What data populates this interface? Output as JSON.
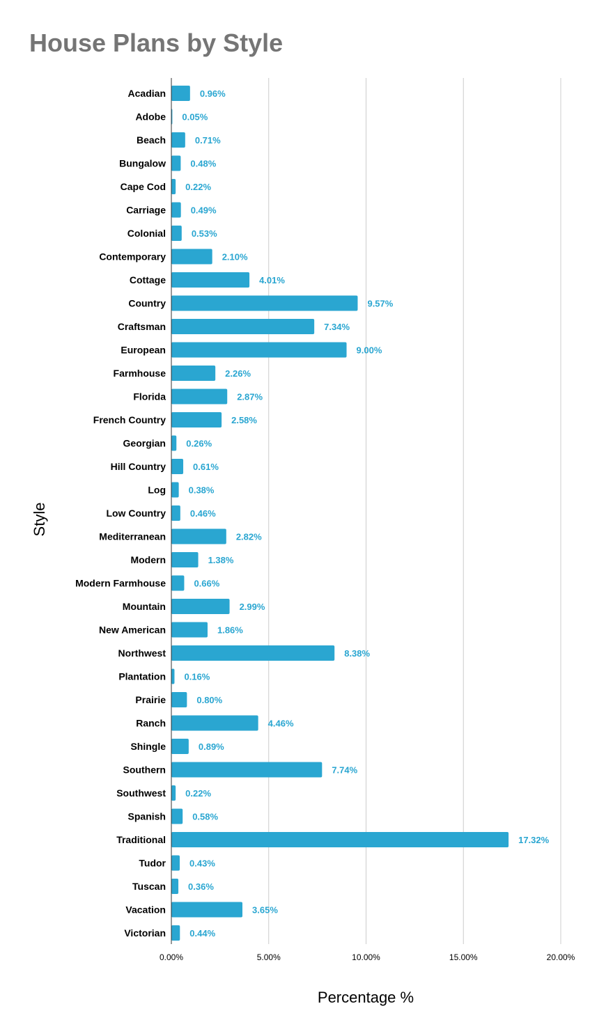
{
  "chart_data": {
    "type": "bar",
    "orientation": "horizontal",
    "title": "House Plans by Style",
    "xlabel": "Percentage %",
    "ylabel": "Style",
    "xlim": [
      0,
      20
    ],
    "x_ticks": [
      "0.00%",
      "5.00%",
      "10.00%",
      "15.00%",
      "20.00%"
    ],
    "grid": true,
    "legend": "none",
    "bar_color": "#2aa6d1",
    "label_color": "#2aa6d1",
    "title_color": "#757575",
    "categories": [
      "Acadian",
      "Adobe",
      "Beach",
      "Bungalow",
      "Cape Cod",
      "Carriage",
      "Colonial",
      "Contemporary",
      "Cottage",
      "Country",
      "Craftsman",
      "European",
      "Farmhouse",
      "Florida",
      "French Country",
      "Georgian",
      "Hill Country",
      "Log",
      "Low Country",
      "Mediterranean",
      "Modern",
      "Modern Farmhouse",
      "Mountain",
      "New American",
      "Northwest",
      "Plantation",
      "Prairie",
      "Ranch",
      "Shingle",
      "Southern",
      "Southwest",
      "Spanish",
      "Traditional",
      "Tudor",
      "Tuscan",
      "Vacation",
      "Victorian"
    ],
    "values": [
      0.96,
      0.05,
      0.71,
      0.48,
      0.22,
      0.49,
      0.53,
      2.1,
      4.01,
      9.57,
      7.34,
      9.0,
      2.26,
      2.87,
      2.58,
      0.26,
      0.61,
      0.38,
      0.46,
      2.82,
      1.38,
      0.66,
      2.99,
      1.86,
      8.38,
      0.16,
      0.8,
      4.46,
      0.89,
      7.74,
      0.22,
      0.58,
      17.32,
      0.43,
      0.36,
      3.65,
      0.44
    ],
    "data_labels": [
      "0.96%",
      "0.05%",
      "0.71%",
      "0.48%",
      "0.22%",
      "0.49%",
      "0.53%",
      "2.10%",
      "4.01%",
      "9.57%",
      "7.34%",
      "9.00%",
      "2.26%",
      "2.87%",
      "2.58%",
      "0.26%",
      "0.61%",
      "0.38%",
      "0.46%",
      "2.82%",
      "1.38%",
      "0.66%",
      "2.99%",
      "1.86%",
      "8.38%",
      "0.16%",
      "0.80%",
      "4.46%",
      "0.89%",
      "7.74%",
      "0.22%",
      "0.58%",
      "17.32%",
      "0.43%",
      "0.36%",
      "3.65%",
      "0.44%"
    ]
  }
}
